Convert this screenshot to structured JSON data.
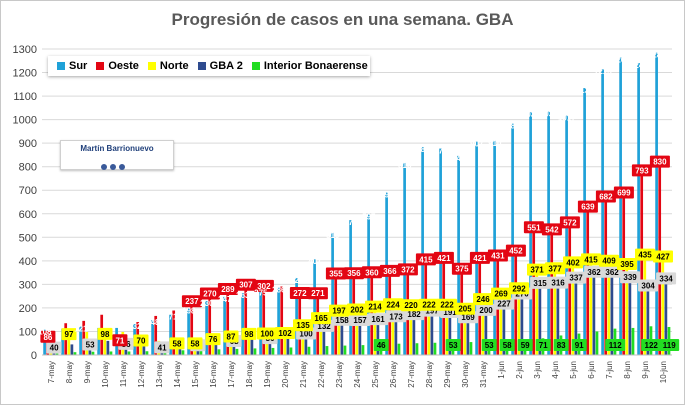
{
  "chart_data": {
    "type": "bar",
    "title": "Progresión de casos en una semana. GBA",
    "xlabel": "",
    "ylabel": "",
    "ylim": [
      0,
      1300
    ],
    "yticks": [
      0,
      100,
      200,
      300,
      400,
      500,
      600,
      700,
      800,
      900,
      1000,
      1100,
      1200,
      1300
    ],
    "grid": true,
    "legend_position": "top-left",
    "categories": [
      "7-may",
      "8-may",
      "9-may",
      "10-may",
      "11-may",
      "12-may",
      "13-may",
      "14-may",
      "15-may",
      "16-may",
      "17-may",
      "18-may",
      "19-may",
      "20-may",
      "21-may",
      "22-may",
      "23-may",
      "24-may",
      "25-may",
      "26-may",
      "27-may",
      "28-may",
      "29-may",
      "30-may",
      "31-may",
      "1-jun",
      "2-jun",
      "3-jun",
      "4-jun",
      "5-jun",
      "6-jun",
      "7-jun",
      "8-jun",
      "9-jun",
      "10-jun"
    ],
    "series": [
      {
        "name": "Sur",
        "color": "#1fa1d8",
        "values": [
          108,
          112,
          121,
          115,
          115,
          132,
          148,
          171,
          198,
          230,
          247,
          263,
          275,
          286,
          328,
          407,
          519,
          573,
          597,
          691,
          816,
          884,
          877,
          846,
          907,
          910,
          983,
          1032,
          1034,
          1017,
          1134,
          1215,
          1264,
          1240,
          1285
        ]
      },
      {
        "name": "Oeste",
        "color": "#e30613",
        "values": [
          86,
          135,
          145,
          171,
          71,
          140,
          166,
          189,
          237,
          270,
          289,
          307,
          302,
          291,
          272,
          271,
          355,
          356,
          360,
          366,
          372,
          415,
          421,
          375,
          421,
          431,
          452,
          551,
          542,
          572,
          639,
          682,
          699,
          793,
          830
        ]
      },
      {
        "name": "Norte",
        "color": "#ffff00",
        "values": [
          42,
          97,
          98,
          98,
          98,
          70,
          60,
          58,
          58,
          76,
          87,
          98,
          100,
          102,
          135,
          165,
          197,
          202,
          214,
          224,
          220,
          222,
          222,
          205,
          246,
          269,
          292,
          371,
          377,
          402,
          415,
          409,
          395,
          435,
          427
        ]
      },
      {
        "name": "GBA 2",
        "color": "#2e4b8f",
        "values": [
          40,
          45,
          53,
          60,
          56,
          58,
          41,
          50,
          50,
          60,
          68,
          68,
          80,
          85,
          100,
          132,
          158,
          157,
          161,
          173,
          182,
          197,
          191,
          169,
          200,
          227,
          270,
          315,
          316,
          337,
          362,
          362,
          339,
          304,
          334
        ]
      },
      {
        "name": "Interior Bonaerense",
        "color": "#22dd22",
        "values": [
          10,
          12,
          14,
          15,
          15,
          16,
          18,
          20,
          22,
          24,
          26,
          28,
          30,
          32,
          35,
          38,
          40,
          42,
          46,
          48,
          50,
          52,
          53,
          55,
          53,
          58,
          59,
          71,
          83,
          91,
          100,
          112,
          115,
          122,
          119
        ]
      }
    ],
    "data_labels": {
      "Sur": [
        108,
        null,
        121,
        null,
        null,
        132,
        148,
        171,
        198,
        230,
        247,
        263,
        275,
        286,
        328,
        407,
        519,
        573,
        597,
        691,
        816,
        884,
        877,
        846,
        907,
        910,
        983,
        1032,
        1034,
        1017,
        1134,
        1215,
        1264,
        1240,
        1285
      ],
      "Oeste": [
        86,
        null,
        null,
        null,
        71,
        null,
        null,
        null,
        237,
        270,
        289,
        307,
        302,
        null,
        272,
        271,
        355,
        356,
        360,
        366,
        372,
        415,
        421,
        375,
        421,
        431,
        452,
        551,
        542,
        572,
        639,
        682,
        699,
        793,
        830
      ],
      "Norte": [
        null,
        97,
        null,
        98,
        null,
        70,
        null,
        58,
        58,
        76,
        87,
        98,
        100,
        102,
        135,
        165,
        197,
        202,
        214,
        224,
        220,
        222,
        222,
        205,
        246,
        269,
        292,
        371,
        377,
        402,
        415,
        409,
        395,
        435,
        427
      ],
      "GBA 2": [
        40,
        null,
        53,
        null,
        56,
        null,
        41,
        null,
        50,
        null,
        68,
        null,
        80,
        null,
        100,
        132,
        158,
        157,
        161,
        173,
        182,
        197,
        191,
        169,
        200,
        227,
        270,
        315,
        316,
        337,
        362,
        362,
        339,
        304,
        334
      ],
      "Interior Bonaerense": [
        null,
        null,
        null,
        null,
        null,
        null,
        null,
        null,
        null,
        null,
        null,
        null,
        null,
        null,
        null,
        null,
        null,
        null,
        46,
        null,
        null,
        null,
        53,
        null,
        53,
        58,
        59,
        71,
        83,
        91,
        null,
        112,
        null,
        122,
        119
      ]
    }
  },
  "watermark": {
    "text": "Martín Barrionuevo"
  }
}
